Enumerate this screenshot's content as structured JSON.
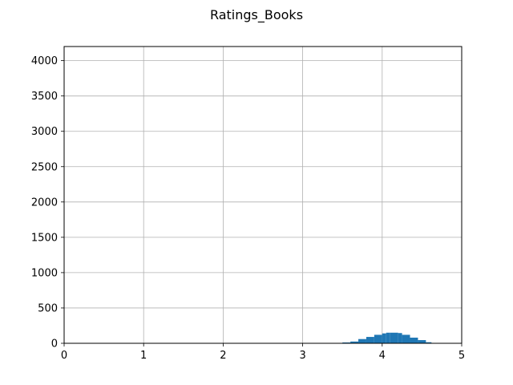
{
  "chart_data": {
    "type": "bar",
    "title": "Ratings_Books",
    "xlabel": "",
    "ylabel": "",
    "xlim": [
      0,
      5
    ],
    "ylim": [
      0,
      4200
    ],
    "grid": true,
    "bar_color": "#1f77b4",
    "x_ticks": [
      0,
      1,
      2,
      3,
      4,
      5
    ],
    "y_ticks": [
      0,
      500,
      1000,
      1500,
      2000,
      2500,
      3000,
      3500,
      4000
    ],
    "bins": [
      {
        "x0": 3.4,
        "x1": 3.5,
        "count": 5
      },
      {
        "x0": 3.5,
        "x1": 3.6,
        "count": 12
      },
      {
        "x0": 3.6,
        "x1": 3.7,
        "count": 25
      },
      {
        "x0": 3.7,
        "x1": 3.8,
        "count": 60
      },
      {
        "x0": 3.8,
        "x1": 3.9,
        "count": 90
      },
      {
        "x0": 3.9,
        "x1": 4.0,
        "count": 120
      },
      {
        "x0": 4.0,
        "x1": 4.05,
        "count": 140
      },
      {
        "x0": 4.05,
        "x1": 4.1,
        "count": 150
      },
      {
        "x0": 4.1,
        "x1": 4.2,
        "count": 150
      },
      {
        "x0": 4.2,
        "x1": 4.25,
        "count": 145
      },
      {
        "x0": 4.25,
        "x1": 4.35,
        "count": 120
      },
      {
        "x0": 4.35,
        "x1": 4.45,
        "count": 80
      },
      {
        "x0": 4.45,
        "x1": 4.55,
        "count": 45
      },
      {
        "x0": 4.55,
        "x1": 4.62,
        "count": 15
      },
      {
        "x0": 4.62,
        "x1": 4.7,
        "count": 5
      }
    ]
  }
}
